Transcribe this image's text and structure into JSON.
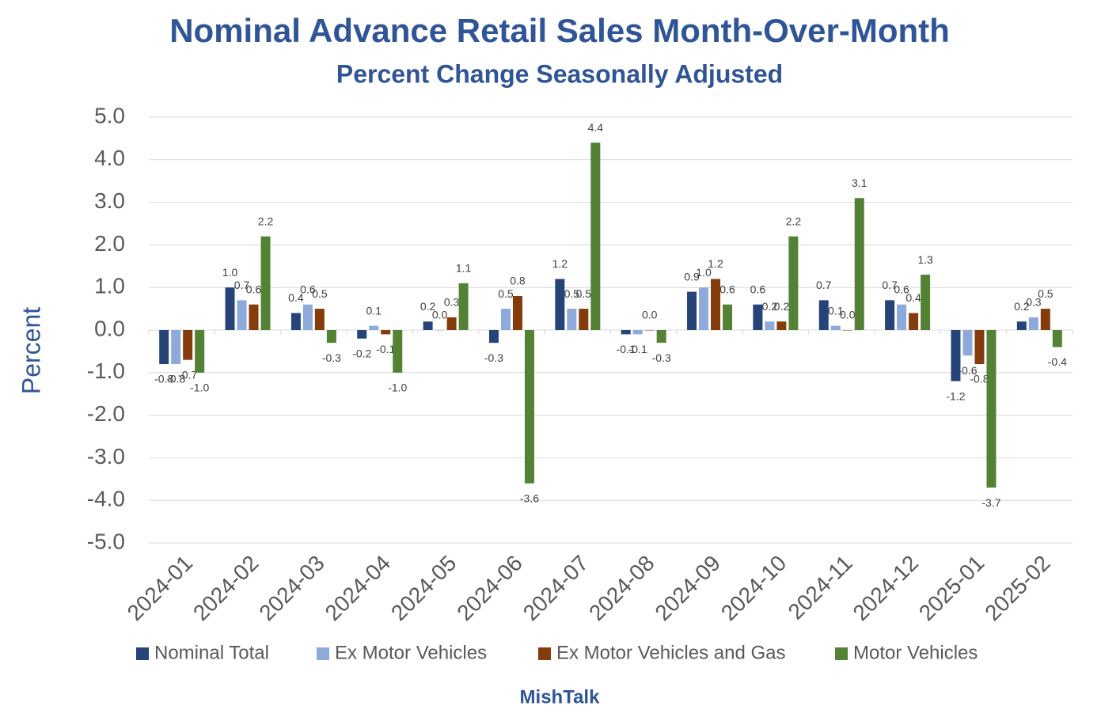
{
  "chart_data": {
    "type": "bar",
    "title": "Nominal Advance Retail Sales Month-Over-Month",
    "subtitle": "Percent Change Seasonally Adjusted",
    "y_label": "Percent",
    "source": "MishTalk",
    "categories": [
      "2024-01",
      "2024-02",
      "2024-03",
      "2024-04",
      "2024-05",
      "2024-06",
      "2024-07",
      "2024-08",
      "2024-09",
      "2024-10",
      "2024-11",
      "2024-12",
      "2025-01",
      "2025-02"
    ],
    "series": [
      {
        "name": "Nominal Total",
        "color": "#264478",
        "values": [
          -0.8,
          1.0,
          0.4,
          -0.2,
          0.2,
          -0.3,
          1.2,
          -0.1,
          0.9,
          0.6,
          0.7,
          0.7,
          -1.2,
          0.2
        ],
        "value_labels": [
          "-0.8",
          "1.0",
          "0.4",
          "-0.2",
          "0.2",
          "-0.3",
          "1.2",
          "-0.1",
          "0.9",
          "0.6",
          "0.7",
          "0.7",
          "-1.2",
          "0.2"
        ]
      },
      {
        "name": "Ex Motor Vehicles",
        "color": "#8eaadb",
        "values": [
          -0.8,
          0.7,
          0.6,
          0.1,
          0.0,
          0.5,
          0.5,
          -0.1,
          1.0,
          0.2,
          0.1,
          0.6,
          -0.6,
          0.3
        ],
        "value_labels": [
          "-0.8",
          "0.7",
          "0.6",
          "0.1",
          "0.0",
          "0.5",
          "0.5",
          "-0.1",
          "1.0",
          "0.2",
          "0.1",
          "0.6",
          "-0.6",
          "0.3"
        ]
      },
      {
        "name": "Ex Motor Vehicles and Gas",
        "color": "#843c0c",
        "values": [
          -0.7,
          0.6,
          0.5,
          -0.1,
          0.3,
          0.8,
          0.5,
          0.0,
          1.2,
          0.2,
          0.0,
          0.4,
          -0.8,
          0.5
        ],
        "value_labels": [
          "-0.7",
          "0.6",
          "0.5",
          "-0.1",
          "0.3",
          "0.8",
          "0.5",
          "0.0",
          "1.2",
          "0.2",
          "0.0",
          "0.4",
          "-0.8",
          "0.5"
        ]
      },
      {
        "name": "Motor Vehicles",
        "color": "#548235",
        "values": [
          -1.0,
          2.2,
          -0.3,
          -1.0,
          1.1,
          -3.6,
          4.4,
          -0.3,
          0.6,
          2.2,
          3.1,
          1.3,
          -3.7,
          -0.4
        ],
        "value_labels": [
          "-1.0",
          "2.2",
          "-0.3",
          "-1.0",
          "1.1",
          "-3.6",
          "4.4",
          "-0.3",
          "0.6",
          "2.2",
          "3.1",
          "1.3",
          "-3.7",
          "-0.4"
        ]
      }
    ],
    "ylim": [
      -5,
      5
    ],
    "yticks": [
      {
        "value": -5,
        "label": "-5.0"
      },
      {
        "value": -4,
        "label": "-4.0"
      },
      {
        "value": -3,
        "label": "-3.0"
      },
      {
        "value": -2,
        "label": "-2.0"
      },
      {
        "value": -1,
        "label": "-1.0"
      },
      {
        "value": 0,
        "label": "0.0"
      },
      {
        "value": 1,
        "label": "1.0"
      },
      {
        "value": 2,
        "label": "2.0"
      },
      {
        "value": 3,
        "label": "3.0"
      },
      {
        "value": 4,
        "label": "4.0"
      },
      {
        "value": 5,
        "label": "5.0"
      }
    ],
    "grid": true,
    "legend": "bottom"
  }
}
